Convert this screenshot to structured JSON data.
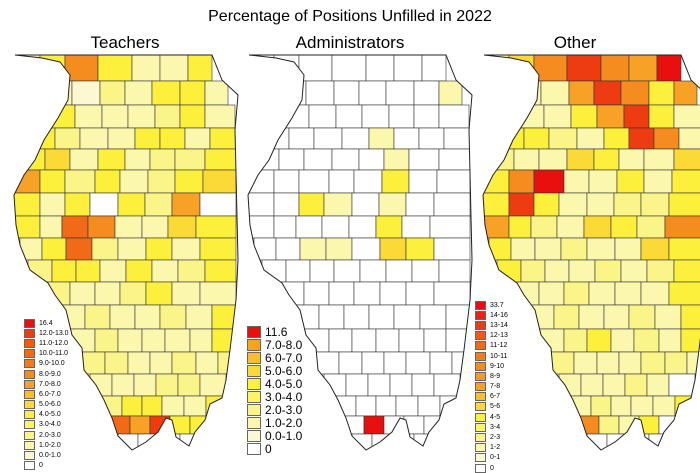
{
  "title": "Percentage of Positions Unfilled in 2022",
  "panels": [
    {
      "id": "teachers",
      "label": "Teachers",
      "legend": [
        {
          "label": "16.4",
          "color": "#e8100e"
        },
        {
          "label": "12.0-13.0",
          "color": "#ee3c12"
        },
        {
          "label": "11.0-12.0",
          "color": "#f05a15"
        },
        {
          "label": "10.0-11.0",
          "color": "#f26a18"
        },
        {
          "label": "9.0-10.0",
          "color": "#f37b1c"
        },
        {
          "label": "8.0-9.0",
          "color": "#f58c20"
        },
        {
          "label": "7.0-8.0",
          "color": "#f7a227"
        },
        {
          "label": "6.0-7.0",
          "color": "#f9bd2f"
        },
        {
          "label": "5.0-6.0",
          "color": "#fbd936"
        },
        {
          "label": "4.0-5.0",
          "color": "#fdf03c"
        },
        {
          "label": "3.0-4.0",
          "color": "#fcf463"
        },
        {
          "label": "2.0-3.0",
          "color": "#fbf589"
        },
        {
          "label": "1.0-2.0",
          "color": "#fbf7ad"
        },
        {
          "label": "0.0-1.0",
          "color": "#fcf9d2"
        },
        {
          "label": "0",
          "color": "#ffffff"
        }
      ]
    },
    {
      "id": "administrators",
      "label": "Administrators",
      "legend": [
        {
          "label": "11.6",
          "color": "#e8100e"
        },
        {
          "label": "7.0-8.0",
          "color": "#f7a227"
        },
        {
          "label": "6.0-7.0",
          "color": "#f9bd2f"
        },
        {
          "label": "5.0-6.0",
          "color": "#fbd936"
        },
        {
          "label": "4.0-5.0",
          "color": "#fdf03c"
        },
        {
          "label": "3.0-4.0",
          "color": "#fcf463"
        },
        {
          "label": "2.0-3.0",
          "color": "#fbf589"
        },
        {
          "label": "1.0-2.0",
          "color": "#fbf7ad"
        },
        {
          "label": "0.0-1.0",
          "color": "#fcf9d2"
        },
        {
          "label": "0",
          "color": "#ffffff"
        }
      ]
    },
    {
      "id": "other",
      "label": "Other",
      "legend": [
        {
          "label": "33.7",
          "color": "#e8100e"
        },
        {
          "label": "14-16",
          "color": "#ea2210"
        },
        {
          "label": "13-14",
          "color": "#ee3c12"
        },
        {
          "label": "12-13",
          "color": "#f05a15"
        },
        {
          "label": "11-12",
          "color": "#f26a18"
        },
        {
          "label": "10-11",
          "color": "#f37b1c"
        },
        {
          "label": "9-10",
          "color": "#f58c20"
        },
        {
          "label": "8-9",
          "color": "#f79a24"
        },
        {
          "label": "7-8",
          "color": "#f7a227"
        },
        {
          "label": "6-7",
          "color": "#f9bd2f"
        },
        {
          "label": "5-6",
          "color": "#fbd936"
        },
        {
          "label": "4-5",
          "color": "#fdf03c"
        },
        {
          "label": "3-4",
          "color": "#fcf463"
        },
        {
          "label": "2-3",
          "color": "#fbf589"
        },
        {
          "label": "1-2",
          "color": "#fbf7ad"
        },
        {
          "label": "0-1",
          "color": "#fcf9d2"
        },
        {
          "label": "0",
          "color": "#ffffff"
        }
      ]
    }
  ]
}
